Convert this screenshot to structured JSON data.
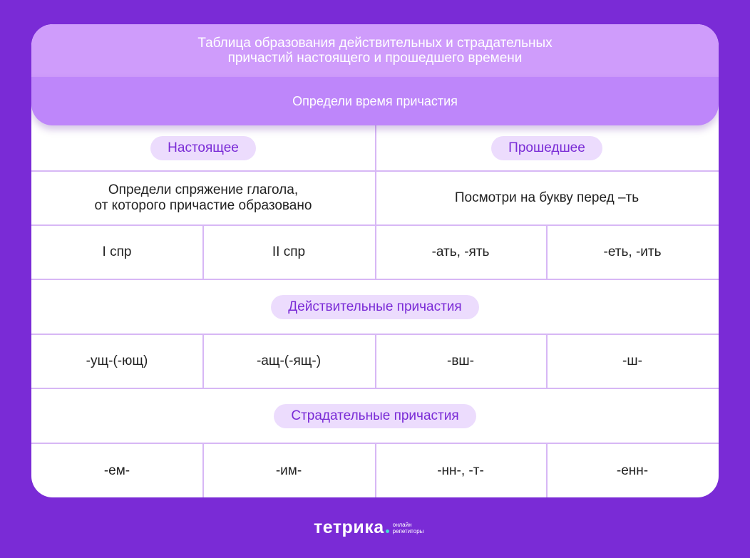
{
  "title": {
    "line1": "Таблица образования действительных и страдательных",
    "line2": "причастий настоящего и прошедшего времени"
  },
  "subtitle": "Определи время причастия",
  "tense": {
    "present": "Настоящее",
    "past": "Прошедшее"
  },
  "instructions": {
    "present_line1": "Определи спряжение глагола,",
    "present_line2": "от которого причастие образовано",
    "past": "Посмотри на букву перед –ть"
  },
  "classes": [
    "I спр",
    "II спр",
    "-ать, -ять",
    "-еть, -ить"
  ],
  "active_heading": "Действительные причастия",
  "active_suffixes": [
    "-ущ-(-ющ)",
    "-ащ-(-ящ-)",
    "-вш-",
    "-ш-"
  ],
  "passive_heading": "Страдательные причастия",
  "passive_suffixes": [
    "-ем-",
    "-им-",
    "-нн-, -т-",
    "-енн-"
  ],
  "logo": {
    "name": "тетрика",
    "sub1": "онлайн",
    "sub2": "репетиторы"
  },
  "colors": {
    "background": "#7a2bd6",
    "title_band": "#cf9cfb",
    "subtitle_band": "#be86fa",
    "pill": "#ecdcfd",
    "accent": "#7a2bd6"
  }
}
